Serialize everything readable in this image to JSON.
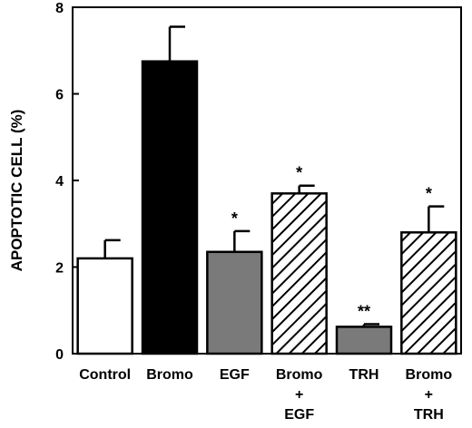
{
  "chart_data": {
    "type": "bar",
    "title": "",
    "xlabel": "",
    "ylabel": "APOPTOTIC CELL (%)",
    "ylim": [
      0,
      8
    ],
    "yticks": [
      "0",
      "2",
      "4",
      "6",
      "8"
    ],
    "categories": [
      [
        "Control"
      ],
      [
        "Bromo"
      ],
      [
        "EGF"
      ],
      [
        "Bromo",
        "+",
        "EGF"
      ],
      [
        "TRH"
      ],
      [
        "Bromo",
        "+",
        "TRH"
      ]
    ],
    "values": [
      2.2,
      6.75,
      2.35,
      3.7,
      0.62,
      2.8
    ],
    "errors": [
      0.42,
      0.8,
      0.48,
      0.18,
      0.06,
      0.6
    ],
    "fills": [
      "white",
      "black",
      "gray",
      "hatch",
      "gray",
      "hatch"
    ],
    "significance": [
      "",
      "",
      "*",
      "*",
      "**",
      "*"
    ],
    "grid": false,
    "legend": "none"
  }
}
